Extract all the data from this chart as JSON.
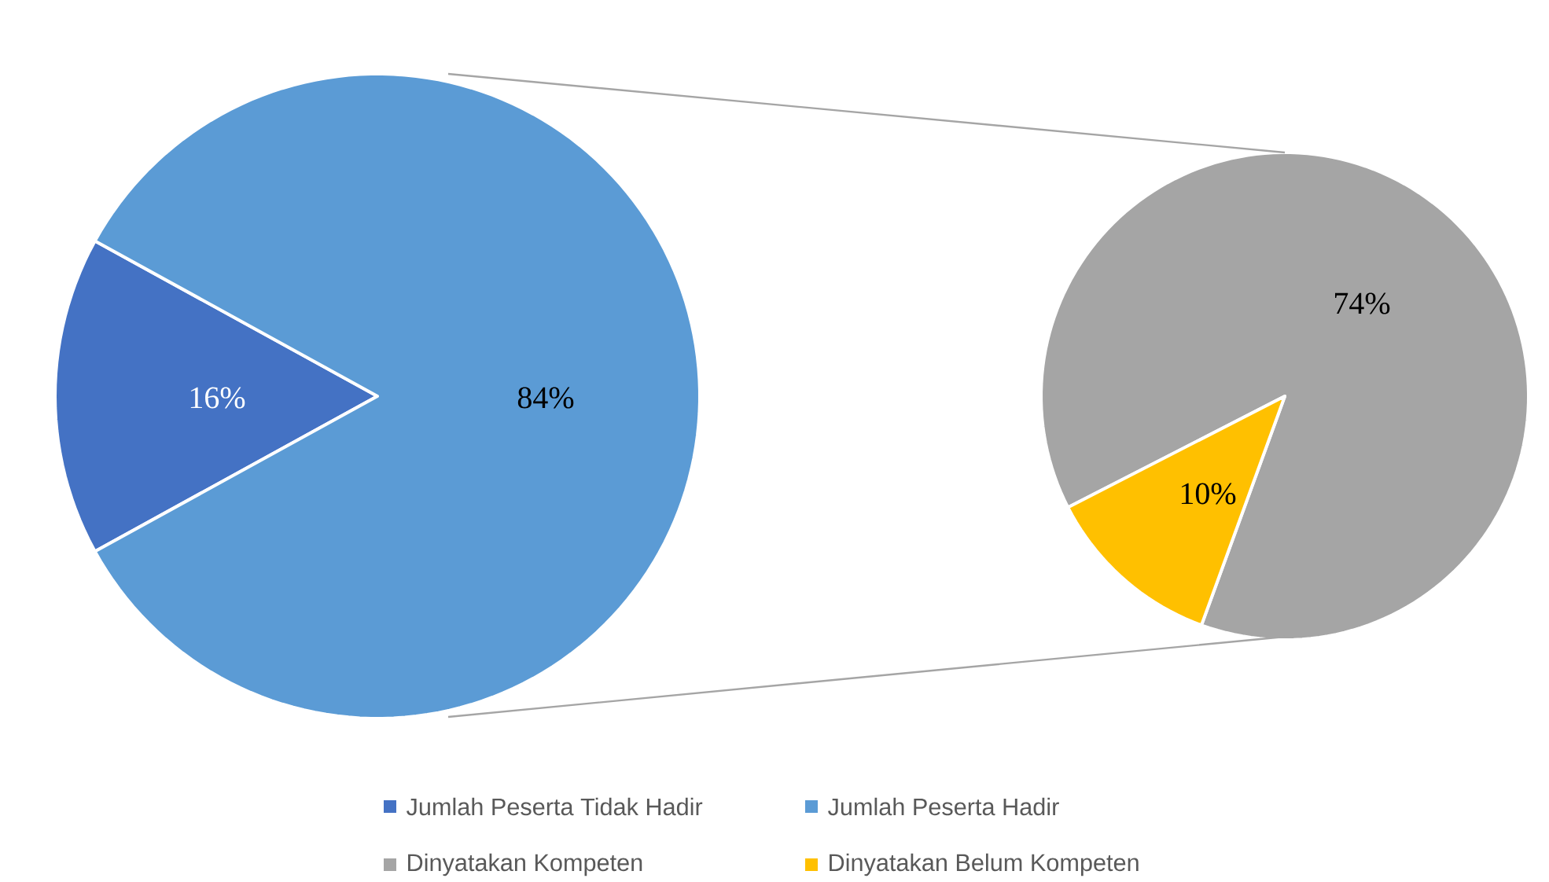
{
  "chart_data": [
    {
      "type": "pie",
      "categories": [
        "Jumlah Peserta Tidak Hadir",
        "Jumlah Peserta Hadir"
      ],
      "values": [
        16,
        84
      ],
      "colors": [
        "#4472c4",
        "#5b9bd5"
      ],
      "value_labels": [
        "16%",
        "84%"
      ],
      "legend": "bottom"
    },
    {
      "type": "pie",
      "categories": [
        "Dinyatakan Kompeten",
        "Dinyatakan Belum Kompeten"
      ],
      "values": [
        74,
        10
      ],
      "colors": [
        "#a5a5a5",
        "#ffc000"
      ],
      "value_labels": [
        "74%",
        "10%"
      ],
      "legend": "bottom"
    }
  ]
}
